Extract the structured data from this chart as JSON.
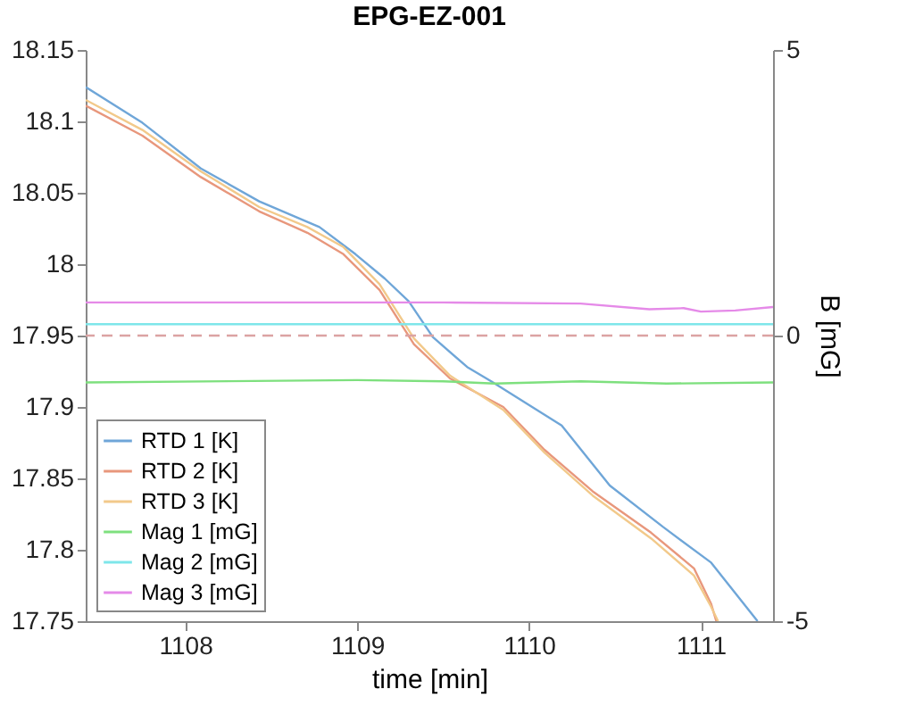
{
  "chart_data": {
    "type": "line",
    "title": "EPG-EZ-001",
    "xlabel": "time [min]",
    "y2label": "B [mG]",
    "xlim": [
      1107.42,
      1111.42
    ],
    "xticks": [
      1108,
      1109,
      1110,
      1111
    ],
    "ylim": [
      17.75,
      18.15
    ],
    "yticks": [
      17.75,
      17.8,
      17.85,
      17.9,
      17.95,
      18,
      18.05,
      18.1,
      18.15
    ],
    "y2lim": [
      -5,
      5
    ],
    "y2ticks": [
      -5,
      0,
      5
    ],
    "grid": false,
    "legend": "bottom left",
    "line_style": "solid",
    "marker": "none",
    "ref_lines": [
      {
        "axis": "y2",
        "value": 0,
        "color": "#dba3a3",
        "line_style": "dashed"
      }
    ],
    "series": [
      {
        "name": "RTD 1 [K]",
        "color": "#6fa6d8",
        "x": [
          1107.42,
          1107.75,
          1108.09,
          1108.43,
          1108.78,
          1108.99,
          1109.16,
          1109.3,
          1109.44,
          1109.64,
          1109.78,
          1110.19,
          1110.47,
          1110.78,
          1111.06,
          1111.33
        ],
        "values": [
          18.124,
          18.099,
          18.067,
          18.044,
          18.026,
          18.007,
          17.99,
          17.974,
          17.949,
          17.928,
          17.918,
          17.887,
          17.845,
          17.816,
          17.791,
          17.75
        ]
      },
      {
        "name": "RTD 2 [K]",
        "color": "#e8977c",
        "x": [
          1107.42,
          1107.75,
          1108.09,
          1108.43,
          1108.71,
          1108.92,
          1109.13,
          1109.33,
          1109.54,
          1109.85,
          1110.09,
          1110.37,
          1110.71,
          1110.96,
          1111.06,
          1111.09
        ],
        "values": [
          18.111,
          18.09,
          18.061,
          18.037,
          18.022,
          18.007,
          17.982,
          17.944,
          17.92,
          17.9,
          17.87,
          17.841,
          17.812,
          17.787,
          17.762,
          17.75
        ]
      },
      {
        "name": "RTD 3 [K]",
        "color": "#f2c98a",
        "x": [
          1107.42,
          1107.75,
          1108.09,
          1108.43,
          1108.71,
          1108.92,
          1109.13,
          1109.33,
          1109.54,
          1109.85,
          1110.09,
          1110.37,
          1110.71,
          1110.96,
          1111.06,
          1111.1
        ],
        "values": [
          18.115,
          18.094,
          18.065,
          18.04,
          18.026,
          18.012,
          17.986,
          17.948,
          17.922,
          17.898,
          17.868,
          17.838,
          17.808,
          17.782,
          17.76,
          17.75
        ]
      },
      {
        "name": "Mag 1 [mG]",
        "color": "#7ee07e",
        "axis": "y2",
        "x": [
          1107.42,
          1109.0,
          1109.5,
          1109.8,
          1110.3,
          1110.8,
          1111.42
        ],
        "values": [
          -0.82,
          -0.78,
          -0.8,
          -0.84,
          -0.8,
          -0.84,
          -0.82
        ]
      },
      {
        "name": "Mag 2 [mG]",
        "color": "#7ee6ea",
        "axis": "y2",
        "x": [
          1107.42,
          1111.42
        ],
        "values": [
          0.2,
          0.2
        ]
      },
      {
        "name": "Mag 3 [mG]",
        "color": "#e58ae8",
        "axis": "y2",
        "x": [
          1107.42,
          1109.5,
          1110.3,
          1110.7,
          1110.9,
          1111.0,
          1111.2,
          1111.42
        ],
        "values": [
          0.58,
          0.58,
          0.56,
          0.46,
          0.48,
          0.42,
          0.44,
          0.5
        ]
      }
    ]
  }
}
